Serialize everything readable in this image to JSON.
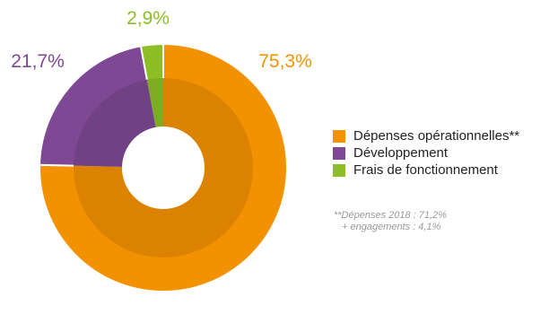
{
  "chart_data": {
    "type": "pie",
    "categories": [
      "Dépenses opérationnelles**",
      "Développement",
      "Frais de fonctionnement"
    ],
    "values": [
      75.3,
      21.7,
      2.9
    ],
    "value_labels": [
      "75,3%",
      "21,7%",
      "2,9%"
    ],
    "colors": [
      "#f39200",
      "#7e4895",
      "#8dbe26"
    ],
    "legend_position": "right"
  },
  "footnote": {
    "line1": "**Dépenses 2018 : 71,2%",
    "line2": "+ engagements : 4,1%"
  }
}
